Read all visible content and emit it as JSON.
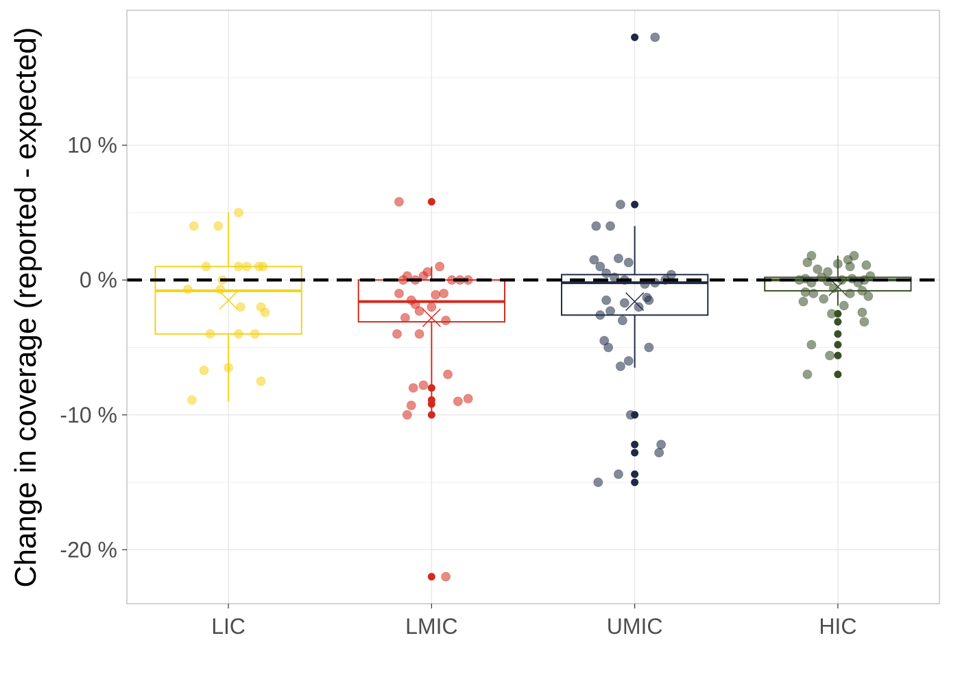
{
  "chart_data": {
    "type": "box",
    "ylabel": "Change in coverage (reported - expected)",
    "xlabel": "",
    "categories": [
      "LIC",
      "LMIC",
      "UMIC",
      "HIC"
    ],
    "ylim": [
      -24,
      20
    ],
    "yticks": [
      {
        "value": 10,
        "label": "10 %"
      },
      {
        "value": 0,
        "label": "0 %"
      },
      {
        "value": -10,
        "label": "-10 %"
      },
      {
        "value": -20,
        "label": "-20 %"
      }
    ],
    "grid": true,
    "reference_line": {
      "value": 0,
      "style": "dashed",
      "color": "#000000"
    },
    "groups": [
      {
        "category": "LIC",
        "color": "#f5d21b",
        "box": {
          "q1": -4.0,
          "median": -0.8,
          "q3": 1.0,
          "whisker_low": -9.0,
          "whisker_high": 5.0
        },
        "mean": -1.5,
        "outliers": [],
        "jitter": [
          {
            "dx": -0.17,
            "y": 4.0
          },
          {
            "dx": -0.05,
            "y": 4.0
          },
          {
            "dx": 0.05,
            "y": 5.0
          },
          {
            "dx": -0.11,
            "y": 1.0
          },
          {
            "dx": 0.05,
            "y": 1.0
          },
          {
            "dx": 0.09,
            "y": 1.0
          },
          {
            "dx": 0.15,
            "y": 1.0
          },
          {
            "dx": 0.17,
            "y": 1.0
          },
          {
            "dx": -0.2,
            "y": -0.7
          },
          {
            "dx": -0.04,
            "y": -0.7
          },
          {
            "dx": -0.03,
            "y": 0.0
          },
          {
            "dx": 0.06,
            "y": -2.0
          },
          {
            "dx": 0.16,
            "y": -2.0
          },
          {
            "dx": 0.18,
            "y": -2.4
          },
          {
            "dx": -0.09,
            "y": -4.0
          },
          {
            "dx": 0.05,
            "y": -4.0
          },
          {
            "dx": 0.13,
            "y": -4.0
          },
          {
            "dx": -0.12,
            "y": -6.7
          },
          {
            "dx": 0.0,
            "y": -6.5
          },
          {
            "dx": 0.16,
            "y": -7.5
          },
          {
            "dx": -0.18,
            "y": -8.9
          }
        ]
      },
      {
        "category": "LMIC",
        "color": "#d42a1e",
        "box": {
          "q1": -3.1,
          "median": -1.6,
          "q3": 0.0,
          "whisker_low": -10.0,
          "whisker_high": 1.0
        },
        "mean": -2.8,
        "outliers": [
          5.8,
          -8.0,
          -8.9,
          -9.2,
          -10.0,
          -22.0
        ],
        "jitter": [
          {
            "dx": -0.16,
            "y": 5.8
          },
          {
            "dx": -0.14,
            "y": 0.0
          },
          {
            "dx": -0.12,
            "y": 0.3
          },
          {
            "dx": -0.08,
            "y": 0.0
          },
          {
            "dx": -0.04,
            "y": 0.3
          },
          {
            "dx": -0.02,
            "y": 0.6
          },
          {
            "dx": 0.04,
            "y": 1.0
          },
          {
            "dx": 0.1,
            "y": 0.0
          },
          {
            "dx": 0.14,
            "y": 0.0
          },
          {
            "dx": 0.18,
            "y": 0.0
          },
          {
            "dx": -0.16,
            "y": -1.0
          },
          {
            "dx": -0.1,
            "y": -1.5
          },
          {
            "dx": -0.08,
            "y": -1.8
          },
          {
            "dx": 0.02,
            "y": -1.1
          },
          {
            "dx": 0.06,
            "y": -1.0
          },
          {
            "dx": 0.0,
            "y": -2.0
          },
          {
            "dx": -0.13,
            "y": -2.8
          },
          {
            "dx": -0.06,
            "y": -2.3
          },
          {
            "dx": 0.07,
            "y": -3.0
          },
          {
            "dx": -0.17,
            "y": -4.0
          },
          {
            "dx": -0.06,
            "y": -4.0
          },
          {
            "dx": 0.08,
            "y": -7.0
          },
          {
            "dx": -0.04,
            "y": -7.8
          },
          {
            "dx": -0.09,
            "y": -8.0
          },
          {
            "dx": 0.13,
            "y": -9.0
          },
          {
            "dx": 0.18,
            "y": -8.8
          },
          {
            "dx": -0.1,
            "y": -9.3
          },
          {
            "dx": -0.12,
            "y": -10.0
          },
          {
            "dx": 0.07,
            "y": -22.0
          }
        ]
      },
      {
        "category": "UMIC",
        "color": "#1f2a44",
        "box": {
          "q1": -2.6,
          "median": -0.2,
          "q3": 0.4,
          "whisker_low": -6.5,
          "whisker_high": 4.0
        },
        "mean": -1.6,
        "outliers": [
          18.0,
          5.6,
          -10.0,
          -12.2,
          -12.8,
          -14.4,
          -15.0
        ],
        "jitter": [
          {
            "dx": 0.1,
            "y": 18.0
          },
          {
            "dx": -0.07,
            "y": 5.6
          },
          {
            "dx": -0.19,
            "y": 4.0
          },
          {
            "dx": -0.12,
            "y": 4.0
          },
          {
            "dx": -0.2,
            "y": 1.5
          },
          {
            "dx": -0.17,
            "y": 1.0
          },
          {
            "dx": -0.08,
            "y": 1.6
          },
          {
            "dx": -0.03,
            "y": 1.3
          },
          {
            "dx": -0.14,
            "y": 0.5
          },
          {
            "dx": -0.1,
            "y": 0.2
          },
          {
            "dx": -0.05,
            "y": 0.0
          },
          {
            "dx": 0.05,
            "y": -0.3
          },
          {
            "dx": 0.1,
            "y": -0.2
          },
          {
            "dx": 0.15,
            "y": 0.0
          },
          {
            "dx": 0.18,
            "y": 0.4
          },
          {
            "dx": -0.14,
            "y": -1.5
          },
          {
            "dx": -0.05,
            "y": -1.7
          },
          {
            "dx": 0.06,
            "y": -1.3
          },
          {
            "dx": 0.07,
            "y": -1.5
          },
          {
            "dx": 0.02,
            "y": -2.0
          },
          {
            "dx": -0.17,
            "y": -2.6
          },
          {
            "dx": -0.12,
            "y": -2.3
          },
          {
            "dx": -0.06,
            "y": -3.0
          },
          {
            "dx": -0.15,
            "y": -4.5
          },
          {
            "dx": -0.13,
            "y": -5.0
          },
          {
            "dx": 0.07,
            "y": -5.0
          },
          {
            "dx": -0.07,
            "y": -6.4
          },
          {
            "dx": -0.03,
            "y": -6.0
          },
          {
            "dx": -0.02,
            "y": -10.0
          },
          {
            "dx": 0.13,
            "y": -12.2
          },
          {
            "dx": 0.12,
            "y": -12.8
          },
          {
            "dx": -0.08,
            "y": -14.4
          },
          {
            "dx": -0.18,
            "y": -15.0
          }
        ]
      },
      {
        "category": "HIC",
        "color": "#3b4f26",
        "box": {
          "q1": -0.8,
          "median": 0.0,
          "q3": 0.2,
          "whisker_low": -1.9,
          "whisker_high": 1.8
        },
        "mean": -0.5,
        "outliers": [
          -2.5,
          -3.1,
          -4.0,
          -4.8,
          -5.6,
          -7.0
        ],
        "jitter": [
          {
            "dx": -0.15,
            "y": 1.3
          },
          {
            "dx": -0.13,
            "y": 1.8
          },
          {
            "dx": -0.1,
            "y": 0.8
          },
          {
            "dx": -0.05,
            "y": 0.6
          },
          {
            "dx": 0.0,
            "y": 1.2
          },
          {
            "dx": 0.05,
            "y": 1.5
          },
          {
            "dx": 0.08,
            "y": 1.8
          },
          {
            "dx": 0.06,
            "y": 1.0
          },
          {
            "dx": 0.14,
            "y": 1.1
          },
          {
            "dx": -0.19,
            "y": 0.0
          },
          {
            "dx": -0.16,
            "y": 0.1
          },
          {
            "dx": -0.13,
            "y": -0.2
          },
          {
            "dx": -0.08,
            "y": 0.2
          },
          {
            "dx": -0.05,
            "y": -0.1
          },
          {
            "dx": 0.02,
            "y": 0.0
          },
          {
            "dx": 0.07,
            "y": 0.1
          },
          {
            "dx": 0.1,
            "y": -0.2
          },
          {
            "dx": 0.13,
            "y": 0.0
          },
          {
            "dx": 0.16,
            "y": 0.3
          },
          {
            "dx": -0.16,
            "y": -0.9
          },
          {
            "dx": -0.12,
            "y": -1.0
          },
          {
            "dx": -0.02,
            "y": -0.6
          },
          {
            "dx": 0.06,
            "y": -1.0
          },
          {
            "dx": 0.12,
            "y": -0.8
          },
          {
            "dx": 0.15,
            "y": -1.2
          },
          {
            "dx": -0.17,
            "y": -1.6
          },
          {
            "dx": -0.07,
            "y": -1.4
          },
          {
            "dx": -0.03,
            "y": -2.5
          },
          {
            "dx": 0.12,
            "y": -2.4
          },
          {
            "dx": 0.13,
            "y": -3.1
          },
          {
            "dx": 0.03,
            "y": -1.9
          },
          {
            "dx": -0.13,
            "y": -4.8
          },
          {
            "dx": -0.04,
            "y": -5.6
          },
          {
            "dx": -0.15,
            "y": -7.0
          }
        ]
      }
    ]
  }
}
